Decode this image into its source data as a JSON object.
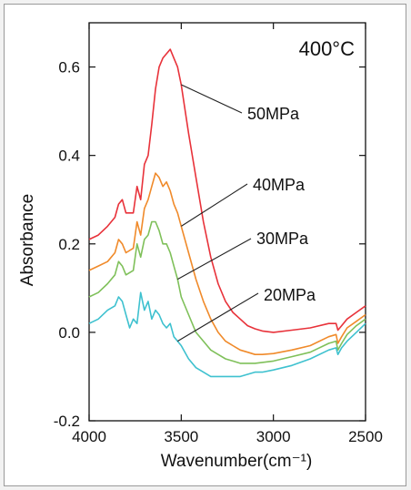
{
  "chart_data": {
    "type": "line",
    "title": "400°C",
    "xlabel": "Wavenumber(cm⁻¹)",
    "ylabel": "Absorbance",
    "xlim": [
      4000,
      2500
    ],
    "ylim": [
      -0.2,
      0.7
    ],
    "x_ticks": [
      "4000",
      "3500",
      "3000",
      "2500"
    ],
    "y_ticks": [
      "-0.2",
      "0.0",
      "0.2",
      "0.4",
      "0.6"
    ],
    "x_tick_values": [
      4000,
      3500,
      3000,
      2500
    ],
    "y_tick_values": [
      -0.2,
      0.0,
      0.2,
      0.4,
      0.6
    ],
    "grid": false,
    "legend": "none",
    "series": [
      {
        "name": "50MPa",
        "color": "#e8323a",
        "label_x": 3490,
        "x": [
          4000,
          3950,
          3900,
          3860,
          3840,
          3820,
          3800,
          3760,
          3740,
          3720,
          3700,
          3680,
          3660,
          3640,
          3620,
          3600,
          3580,
          3560,
          3540,
          3520,
          3500,
          3460,
          3420,
          3380,
          3340,
          3300,
          3260,
          3220,
          3180,
          3140,
          3100,
          3060,
          3000,
          2900,
          2800,
          2700,
          2660,
          2650,
          2630,
          2600,
          2550,
          2500
        ],
        "y": [
          0.21,
          0.22,
          0.24,
          0.26,
          0.29,
          0.3,
          0.27,
          0.27,
          0.33,
          0.3,
          0.38,
          0.4,
          0.47,
          0.55,
          0.6,
          0.62,
          0.63,
          0.64,
          0.62,
          0.6,
          0.56,
          0.45,
          0.35,
          0.25,
          0.17,
          0.11,
          0.07,
          0.045,
          0.03,
          0.015,
          0.008,
          0.003,
          0.0,
          0.005,
          0.01,
          0.02,
          0.02,
          0.005,
          0.015,
          0.03,
          0.045,
          0.06
        ]
      },
      {
        "name": "40MPa",
        "color": "#f08a2a",
        "label_x": 3500,
        "x": [
          4000,
          3950,
          3900,
          3860,
          3840,
          3820,
          3800,
          3760,
          3740,
          3720,
          3700,
          3680,
          3660,
          3640,
          3620,
          3600,
          3580,
          3560,
          3540,
          3520,
          3500,
          3460,
          3420,
          3380,
          3340,
          3300,
          3260,
          3220,
          3180,
          3140,
          3100,
          3060,
          3000,
          2900,
          2800,
          2700,
          2660,
          2650,
          2630,
          2600,
          2550,
          2500
        ],
        "y": [
          0.14,
          0.15,
          0.16,
          0.18,
          0.21,
          0.2,
          0.18,
          0.19,
          0.25,
          0.22,
          0.28,
          0.3,
          0.33,
          0.36,
          0.35,
          0.33,
          0.34,
          0.32,
          0.29,
          0.27,
          0.24,
          0.18,
          0.12,
          0.07,
          0.03,
          0.0,
          -0.02,
          -0.03,
          -0.04,
          -0.045,
          -0.05,
          -0.05,
          -0.048,
          -0.04,
          -0.03,
          -0.01,
          -0.005,
          -0.025,
          -0.01,
          0.01,
          0.025,
          0.04
        ]
      },
      {
        "name": "30MPa",
        "color": "#7fc05a",
        "label_x": 3510,
        "x": [
          4000,
          3950,
          3900,
          3860,
          3840,
          3820,
          3800,
          3760,
          3740,
          3720,
          3700,
          3680,
          3660,
          3640,
          3620,
          3600,
          3580,
          3560,
          3540,
          3520,
          3500,
          3460,
          3420,
          3380,
          3340,
          3300,
          3260,
          3220,
          3180,
          3140,
          3100,
          3060,
          3000,
          2900,
          2800,
          2700,
          2660,
          2650,
          2630,
          2600,
          2550,
          2500
        ],
        "y": [
          0.08,
          0.09,
          0.11,
          0.13,
          0.16,
          0.15,
          0.13,
          0.14,
          0.2,
          0.17,
          0.21,
          0.22,
          0.25,
          0.25,
          0.23,
          0.2,
          0.2,
          0.18,
          0.15,
          0.12,
          0.08,
          0.04,
          0.0,
          -0.02,
          -0.04,
          -0.05,
          -0.06,
          -0.065,
          -0.07,
          -0.07,
          -0.07,
          -0.068,
          -0.065,
          -0.055,
          -0.045,
          -0.025,
          -0.02,
          -0.04,
          -0.025,
          -0.005,
          0.015,
          0.03
        ]
      },
      {
        "name": "20MPa",
        "color": "#3ec1cf",
        "label_x": 3520,
        "x": [
          4000,
          3950,
          3900,
          3860,
          3840,
          3820,
          3800,
          3780,
          3760,
          3740,
          3720,
          3700,
          3680,
          3660,
          3640,
          3620,
          3600,
          3580,
          3560,
          3540,
          3520,
          3500,
          3460,
          3420,
          3380,
          3340,
          3300,
          3260,
          3220,
          3180,
          3140,
          3100,
          3060,
          3000,
          2900,
          2800,
          2700,
          2660,
          2650,
          2630,
          2600,
          2550,
          2500
        ],
        "y": [
          0.02,
          0.03,
          0.05,
          0.06,
          0.08,
          0.07,
          0.04,
          0.01,
          0.03,
          0.02,
          0.09,
          0.05,
          0.07,
          0.03,
          0.05,
          0.04,
          0.02,
          0.01,
          0.02,
          -0.01,
          -0.02,
          -0.03,
          -0.06,
          -0.08,
          -0.09,
          -0.1,
          -0.1,
          -0.1,
          -0.1,
          -0.1,
          -0.095,
          -0.09,
          -0.09,
          -0.085,
          -0.075,
          -0.06,
          -0.04,
          -0.035,
          -0.05,
          -0.035,
          -0.02,
          0.0,
          0.02
        ]
      }
    ]
  }
}
